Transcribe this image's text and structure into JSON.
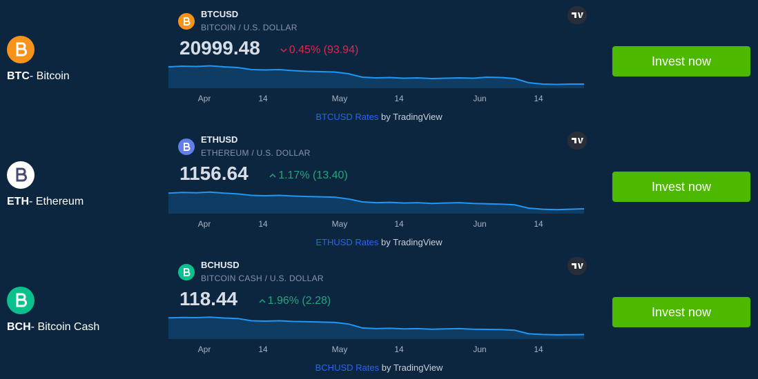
{
  "rows": [
    {
      "ticker": "BTC",
      "name": "- Bitcoin",
      "symbol": "BTCUSD",
      "description": "BITCOIN / U.S. DOLLAR",
      "price": "20999.48",
      "change": "0.45% (93.94)",
      "direction": "down",
      "icon_color": "#f7931a",
      "sparkline": {
        "values": [
          46000,
          47000,
          46500,
          47500,
          46000,
          45000,
          42000,
          41500,
          42000,
          40500,
          39500,
          39000,
          38500,
          36000,
          31000,
          30000,
          30500,
          29500,
          30000,
          29000,
          29500,
          30000,
          29500,
          31000,
          30500,
          29000,
          23000,
          21000,
          20500,
          21000,
          20999
        ],
        "ylim": [
          15000,
          50000
        ],
        "x_labels": [
          "Apr",
          "14",
          "May",
          "14",
          "Jun",
          "14"
        ]
      },
      "link": "BTCUSD Rates",
      "attribution": "by TradingView",
      "button": "Invest now"
    },
    {
      "ticker": "ETH",
      "name": "- Ethereum",
      "symbol": "ETHUSD",
      "description": "ETHEREUM / U.S. DOLLAR",
      "price": "1156.64",
      "change": "1.17% (13.40)",
      "direction": "up",
      "icon_color": "#ffffff",
      "sparkline": {
        "values": [
          3300,
          3400,
          3350,
          3450,
          3300,
          3200,
          3000,
          2950,
          3000,
          2900,
          2850,
          2800,
          2750,
          2500,
          2100,
          2000,
          2050,
          1950,
          2000,
          1900,
          1950,
          2000,
          1900,
          1850,
          1800,
          1700,
          1250,
          1100,
          1050,
          1100,
          1156.64
        ],
        "ylim": [
          500,
          3800
        ],
        "x_labels": [
          "Apr",
          "14",
          "May",
          "14",
          "Jun",
          "14"
        ]
      },
      "link": "ETHUSD Rates",
      "attribution": "by TradingView",
      "button": "Invest now"
    },
    {
      "ticker": "BCH",
      "name": "- Bitcoin Cash",
      "symbol": "BCHUSD",
      "description": "BITCOIN CASH / U.S. DOLLAR",
      "price": "118.44",
      "change": "1.96% (2.28)",
      "direction": "up",
      "icon_color": "#0ac18e",
      "sparkline": {
        "values": [
          375,
          380,
          378,
          385,
          372,
          365,
          330,
          325,
          330,
          320,
          315,
          310,
          305,
          280,
          220,
          210,
          215,
          205,
          210,
          200,
          205,
          210,
          200,
          198,
          195,
          185,
          130,
          120,
          115,
          117,
          118.44
        ],
        "ylim": [
          50,
          420
        ],
        "x_labels": [
          "Apr",
          "14",
          "May",
          "14",
          "Jun",
          "14"
        ]
      },
      "link": "BCHUSD Rates",
      "attribution": "by TradingView",
      "button": "Invest now"
    }
  ]
}
